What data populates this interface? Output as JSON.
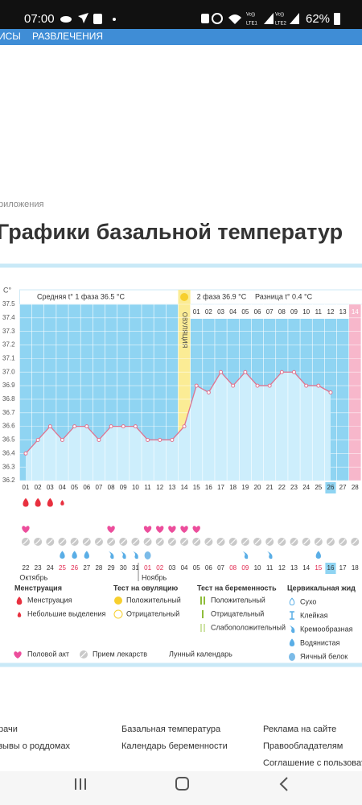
{
  "status_bar": {
    "time": "07:00",
    "sim1": "LTE1",
    "sim2": "LTE2",
    "battery": "62%"
  },
  "nav": [
    "ИСЫ",
    "РАЗВЛЕЧЕНИЯ"
  ],
  "breadcrumb": "риложения",
  "heading": "Графики базальной температур",
  "chart_data": {
    "type": "line",
    "y_unit": "C°",
    "phase1_label": "Средняя t° 1 фаза 36.5 °C",
    "phase2_label": "2 фаза 36.9 °C",
    "difference_label": "Разница t° 0.4 °C",
    "ovulation_label": "ОВУЛЯЦИЯ",
    "ovulation_day": "14",
    "expected_period_day": "28",
    "today_day": "26",
    "today_date": "16",
    "color": "#e0738f",
    "ylim": [
      36.2,
      37.5
    ],
    "yticks": [
      36.2,
      36.3,
      36.4,
      36.5,
      36.6,
      36.7,
      36.8,
      36.9,
      {
        "value": 37,
        "label": "37.0"
      },
      37.1,
      37.2,
      37.3,
      37.4,
      37.5
    ],
    "grid": true,
    "categories": [
      "01",
      "02",
      "03",
      "04",
      "05",
      "06",
      "07",
      "08",
      "09",
      "10",
      "11",
      "12",
      "13",
      "14",
      "15",
      "16",
      "17",
      "18",
      "19",
      "20",
      "21",
      "22",
      "23",
      "24",
      "25",
      "26",
      "27",
      "28"
    ],
    "values": [
      36.4,
      36.5,
      36.6,
      36.5,
      36.6,
      36.6,
      36.5,
      36.6,
      36.6,
      36.6,
      36.5,
      36.5,
      36.5,
      36.6,
      36.9,
      36.85,
      37.0,
      36.9,
      37.0,
      36.9,
      36.9,
      37.0,
      37.0,
      36.9,
      36.9,
      36.85,
      null,
      null
    ],
    "phase2_days": [
      "01",
      "02",
      "03",
      "04",
      "05",
      "06",
      "07",
      "08",
      "09",
      "10",
      "11",
      "12",
      "13",
      "14"
    ],
    "dates": [
      "22",
      "23",
      "24",
      "25",
      "26",
      "27",
      "28",
      "29",
      "30",
      "31",
      "01",
      "02",
      "03",
      "04",
      "05",
      "06",
      "07",
      "08",
      "09",
      "10",
      "11",
      "12",
      "13",
      "14",
      "15",
      "16",
      "17",
      "18"
    ],
    "weekend": [
      false,
      false,
      false,
      true,
      true,
      false,
      false,
      false,
      false,
      false,
      true,
      true,
      false,
      false,
      false,
      false,
      false,
      true,
      true,
      false,
      false,
      false,
      false,
      false,
      true,
      false,
      false,
      false
    ],
    "months": [
      {
        "label": "Октябрь",
        "date": "22"
      },
      {
        "label": "Ноябрь",
        "date": "01"
      }
    ],
    "menstruation": [
      "full",
      "full",
      "full",
      "light",
      null,
      null,
      null,
      null,
      null,
      null,
      null,
      null,
      null,
      null,
      null,
      null,
      null,
      null,
      null,
      null,
      null,
      null,
      null,
      null,
      null,
      null,
      null,
      null
    ],
    "intercourse": [
      "01",
      "08",
      "11",
      "12",
      "13",
      "14",
      "15"
    ],
    "medication": [
      "01",
      "02",
      "03",
      "04",
      "05",
      "06",
      "07",
      "08",
      "09",
      "10",
      "11",
      "12",
      "13",
      "14",
      "15",
      "16",
      "17",
      "18",
      "19",
      "20",
      "21",
      "22",
      "23",
      "24",
      "25",
      "26",
      "27",
      "28"
    ],
    "cervical": [
      {
        "day": "04",
        "kind": "watery"
      },
      {
        "day": "05",
        "kind": "watery"
      },
      {
        "day": "06",
        "kind": "watery"
      },
      {
        "day": "08",
        "kind": "creamy"
      },
      {
        "day": "09",
        "kind": "creamy"
      },
      {
        "day": "10",
        "kind": "creamy"
      },
      {
        "day": "11",
        "kind": "eggwhite"
      },
      {
        "day": "19",
        "kind": "creamy"
      },
      {
        "day": "21",
        "kind": "creamy"
      },
      {
        "day": "25",
        "kind": "watery"
      }
    ]
  },
  "legend": {
    "menstruation": {
      "title": "Менструация",
      "items": [
        "Менструация",
        "Небольшие выделения"
      ]
    },
    "ovulation_test": {
      "title": "Тест на овуляцию",
      "items": [
        "Положительный",
        "Отрицательный"
      ]
    },
    "pregnancy_test": {
      "title": "Тест на беременность",
      "items": [
        "Положительный",
        "Отрицательный",
        "Слабоположительный"
      ]
    },
    "cervical": {
      "title": "Цервикальная жид",
      "items": [
        "Сухо",
        "Клейкая",
        "Кремообразная",
        "Водянистая",
        "Яичный белок"
      ]
    },
    "other": [
      "Половой акт",
      "Прием лекарств",
      "Лунный календарь"
    ]
  },
  "footer": [
    [
      "рачи",
      "зывы о роддомах"
    ],
    [
      "Базальная температура",
      "Календарь беременности"
    ],
    [
      "Реклама на сайте",
      "Правообладателям",
      "Соглашение с пользовате"
    ]
  ]
}
